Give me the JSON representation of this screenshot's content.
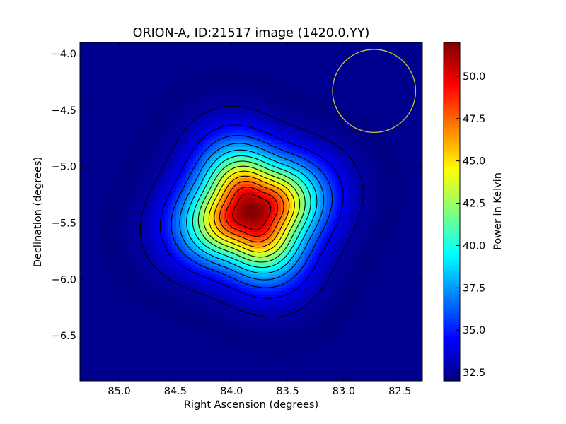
{
  "chart_data": {
    "type": "heatmap",
    "title": "ORION-A, ID:21517 image (1420.0,YY)",
    "xlabel": "Right Ascension (degrees)",
    "ylabel": "Declination (degrees)",
    "colorbar_label": "Power in Kelvin",
    "colormap": "jet",
    "xlim": [
      85.35,
      82.3
    ],
    "ylim": [
      -6.9,
      -3.9
    ],
    "x_axis_inverted": true,
    "x_ticks": [
      85.0,
      84.5,
      84.0,
      83.5,
      83.0,
      82.5
    ],
    "x_tick_labels": [
      "85.0",
      "84.5",
      "84.0",
      "83.5",
      "83.0",
      "82.5"
    ],
    "y_ticks": [
      -4.0,
      -4.5,
      -5.0,
      -5.5,
      -6.0,
      -6.5
    ],
    "y_tick_labels": [
      "−4.0",
      "−4.5",
      "−5.0",
      "−5.5",
      "−6.0",
      "−6.5"
    ],
    "colorbar_range": [
      32.0,
      52.0
    ],
    "colorbar_ticks": [
      32.5,
      35.0,
      37.5,
      40.0,
      42.5,
      45.0,
      47.5,
      50.0
    ],
    "colorbar_tick_labels": [
      "32.5",
      "35.0",
      "37.5",
      "40.0",
      "42.5",
      "45.0",
      "47.5",
      "50.0"
    ],
    "peak": {
      "ra": 83.82,
      "dec": -5.4,
      "value": 52.0
    },
    "background_value": 32.0,
    "contour_count": 13,
    "beam_circle": {
      "ra": 82.73,
      "dec": -4.33,
      "radius_deg": 0.37,
      "color": "#c8c832"
    },
    "grid": false,
    "legend": "none"
  }
}
